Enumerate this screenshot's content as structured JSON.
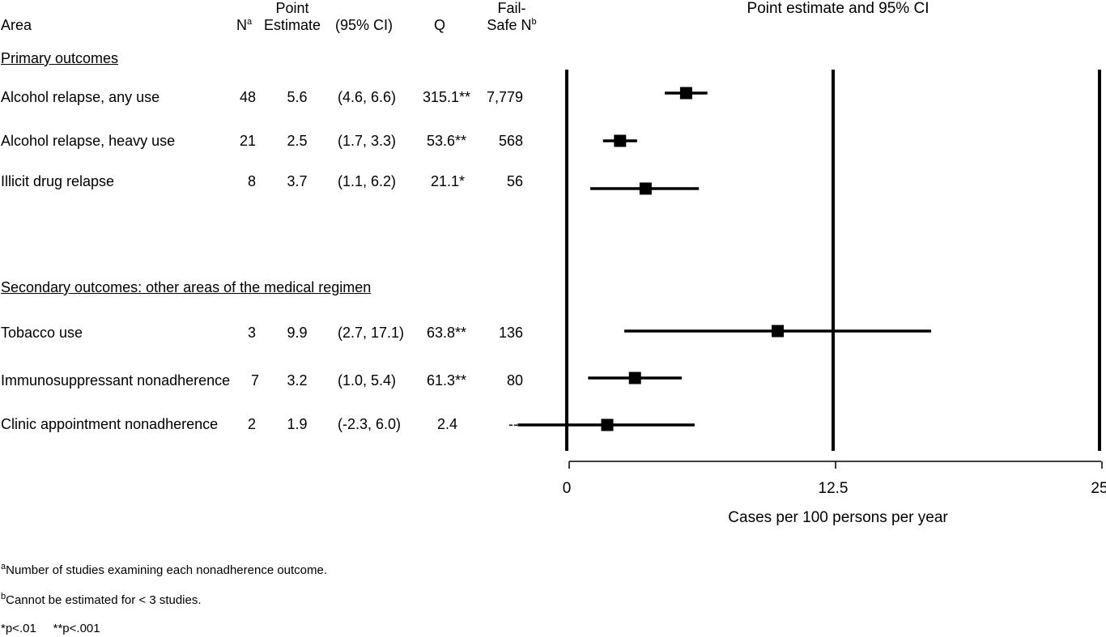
{
  "headers": {
    "area": "Area",
    "n": "N",
    "n_sup": "a",
    "point_line1": "Point",
    "point_line2": "Estimate",
    "ci": "(95% CI)",
    "q": "Q",
    "failsafe_line1": "Fail-",
    "failsafe_line2": "Safe N",
    "failsafe_sup": "b"
  },
  "sections": {
    "primary": "Primary outcomes",
    "secondary": "Secondary outcomes:  other areas of the medical regimen"
  },
  "rows": [
    {
      "area": "Alcohol relapse, any use",
      "n": "48",
      "estimate": "5.6",
      "ci": "(4.6, 6.6)",
      "q": "315.1**",
      "failsafe": "7,779"
    },
    {
      "area": "Alcohol relapse, heavy use",
      "n": "21",
      "estimate": "2.5",
      "ci": "(1.7, 3.3)",
      "q": "53.6**",
      "failsafe": "568"
    },
    {
      "area": "Illicit drug relapse",
      "n": "8",
      "estimate": "3.7",
      "ci": "(1.1, 6.2)",
      "q": "21.1*",
      "failsafe": "56"
    },
    {
      "area": "Tobacco use",
      "n": "3",
      "estimate": "9.9",
      "ci": "(2.7, 17.1)",
      "q": "63.8**",
      "failsafe": "136"
    },
    {
      "area": "Immunosuppressant nonadherence",
      "n": "7",
      "estimate": "3.2",
      "ci": "(1.0,  5.4)",
      "q": "61.3**",
      "failsafe": "80"
    },
    {
      "area": "Clinic appointment nonadherence",
      "n": "2",
      "estimate": "1.9",
      "ci": "(-2.3,  6.0)",
      "q": "2.4",
      "failsafe": "---"
    }
  ],
  "footnotes": {
    "a_mark": "a",
    "a_text": "Number of studies examining each nonadherence outcome.",
    "b_mark": "b",
    "b_text": "Cannot be estimated for < 3 studies.",
    "sig": "*p<.01     **p<.001"
  },
  "chart_data": {
    "type": "forest",
    "title": "Point estimate and 95% CI",
    "xlabel": "Cases per 100 persons per year",
    "xlim": [
      0,
      25
    ],
    "xticks": [
      0,
      12.5,
      25
    ],
    "xtick_labels": [
      "0",
      "12.5",
      "25"
    ],
    "reference_lines": [
      0,
      12.5,
      25
    ],
    "points": [
      {
        "label": "Alcohol relapse, any use",
        "estimate": 5.6,
        "low": 4.6,
        "high": 6.6
      },
      {
        "label": "Alcohol relapse, heavy use",
        "estimate": 2.5,
        "low": 1.7,
        "high": 3.3
      },
      {
        "label": "Illicit drug relapse",
        "estimate": 3.7,
        "low": 1.1,
        "high": 6.2
      },
      {
        "label": "Tobacco use",
        "estimate": 9.9,
        "low": 2.7,
        "high": 17.1
      },
      {
        "label": "Immunosuppressant nonadherence",
        "estimate": 3.2,
        "low": 1.0,
        "high": 5.4
      },
      {
        "label": "Clinic appointment nonadherence",
        "estimate": 1.9,
        "low": -2.3,
        "high": 6.0
      }
    ]
  }
}
